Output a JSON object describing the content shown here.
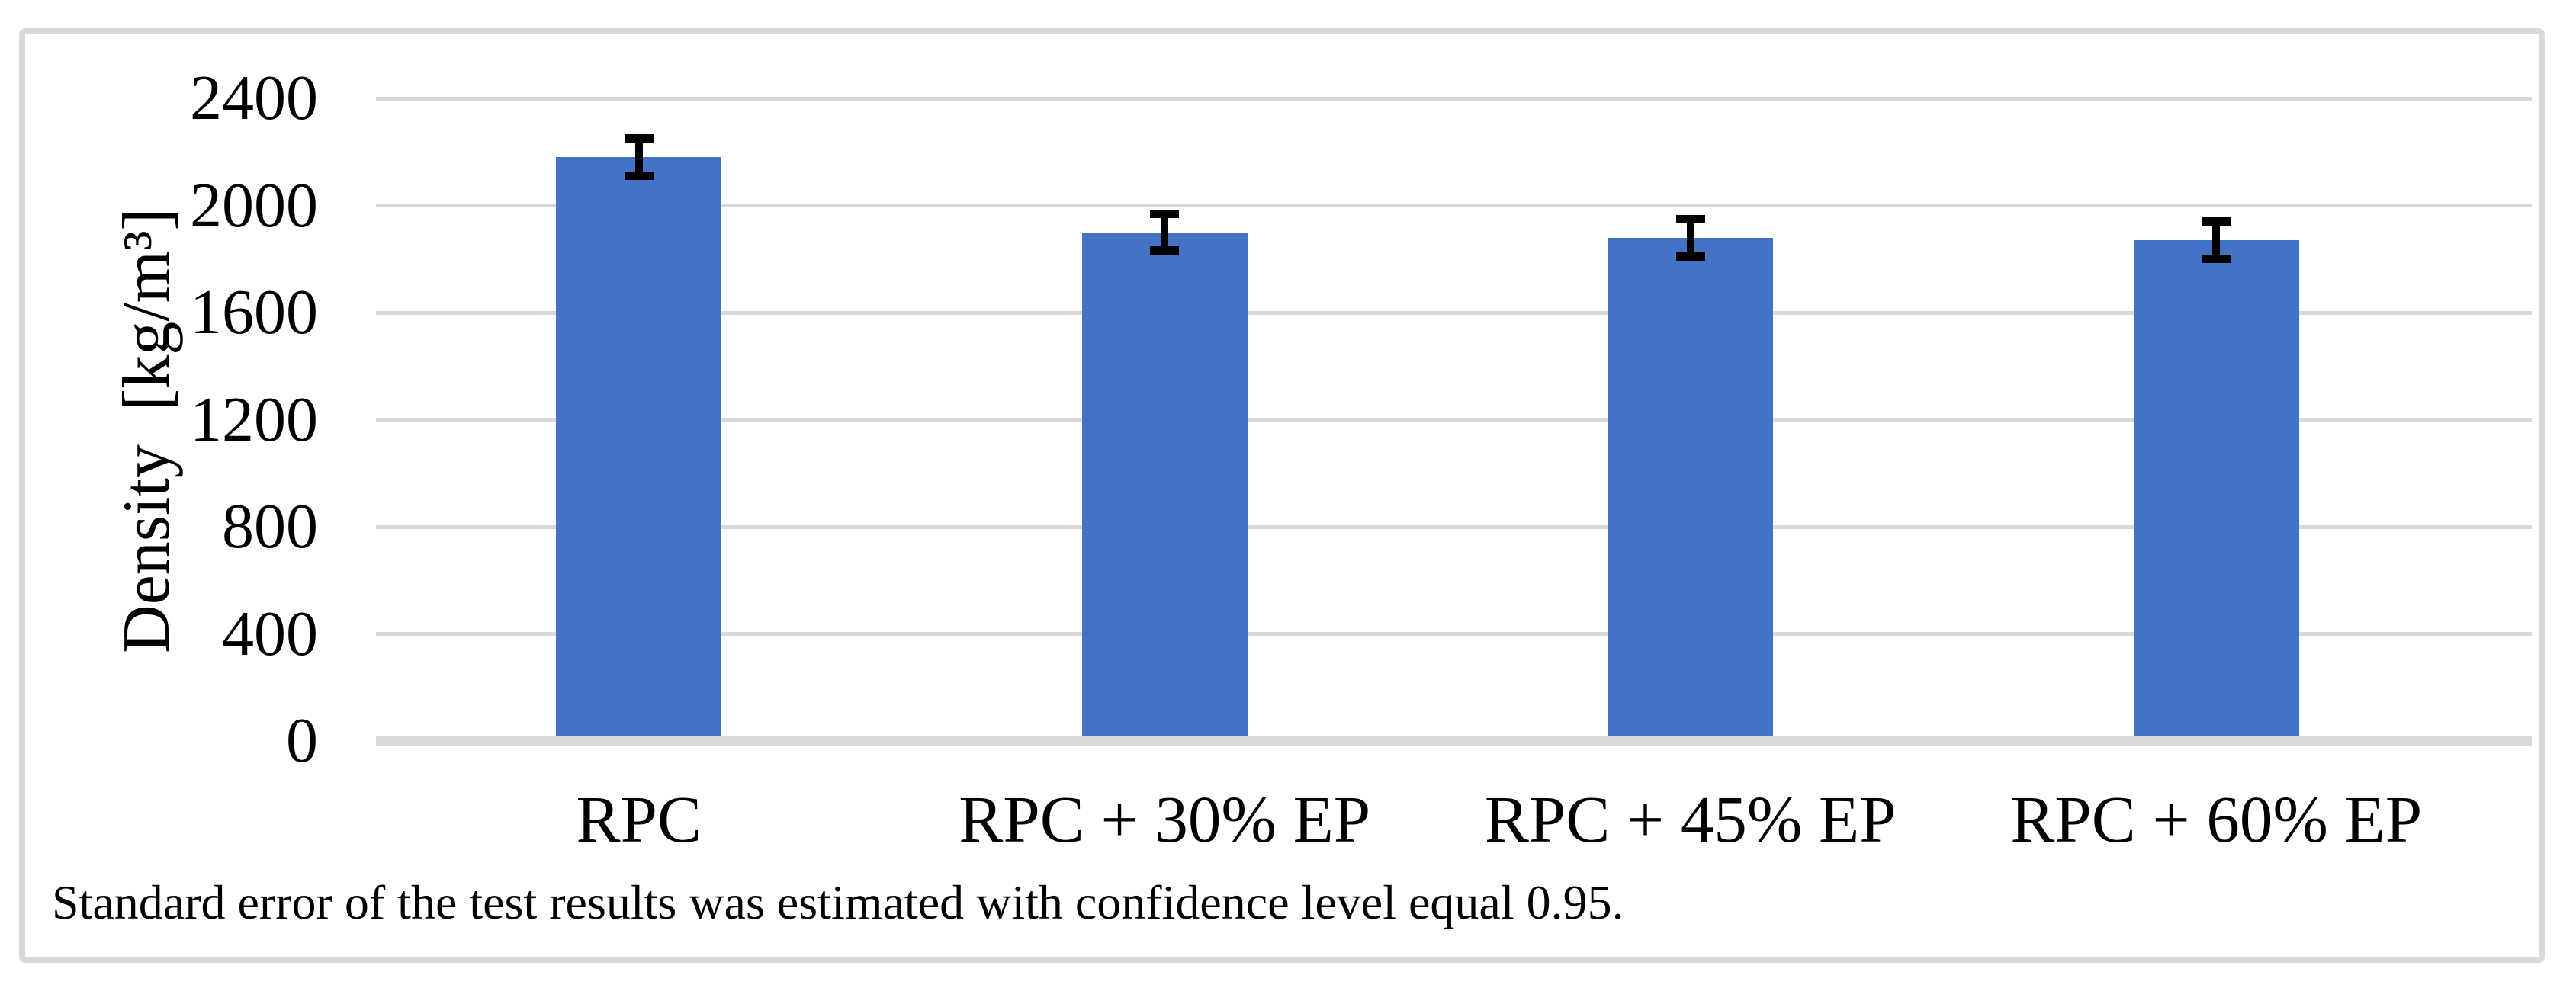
{
  "figure": {
    "caption": "Standard error of the test results was estimated with confidence level equal 0.95."
  },
  "chart_data": {
    "type": "bar",
    "title": "",
    "categories": [
      "RPC",
      "RPC + 30% EP",
      "RPC + 45% EP",
      "RPC + 60% EP"
    ],
    "values": [
      2180,
      1900,
      1880,
      1870
    ],
    "error_bars": [
      85,
      85,
      85,
      85
    ],
    "xlabel": "",
    "ylabel": "Density  [kg/m³]",
    "ylim": [
      0,
      2400
    ],
    "yticks": [
      0,
      400,
      800,
      1200,
      1600,
      2000,
      2400
    ],
    "grid": "horizontal-only",
    "legend": "none",
    "bar_color": "#4472c4",
    "gridline_color": "#d9d9d9",
    "frame_color": "#d9d9d9",
    "error_bar_color": "#000000",
    "text_color": "#000000"
  }
}
